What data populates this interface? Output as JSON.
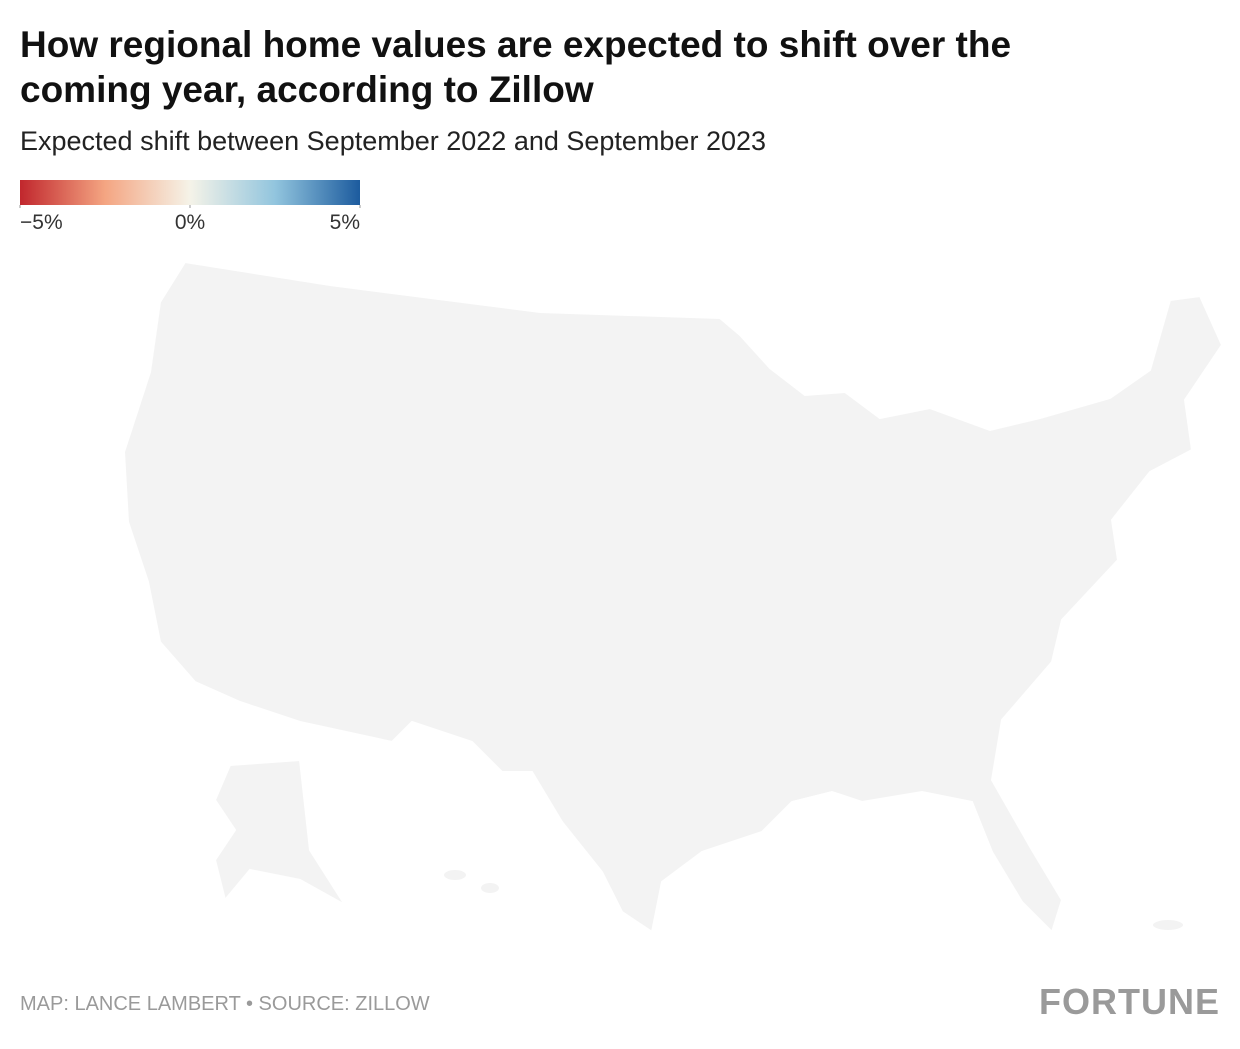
{
  "chart_data": {
    "type": "map",
    "title": [
      "How regional home values are expected to shift over the",
      "coming year, according to Zillow"
    ],
    "subtitle": "Expected shift between September 2022 and September 2023",
    "legend": {
      "lim": [
        -5,
        5
      ],
      "ticks": [
        {
          "value": -5,
          "label": "−5%"
        },
        {
          "value": 0,
          "label": "0%"
        },
        {
          "value": 5,
          "label": "5%"
        }
      ],
      "colors": [
        "#c1272d",
        "#f4a582",
        "#f5f3e8",
        "#92c5de",
        "#1c5b9e"
      ]
    },
    "credit": "MAP: LANCE LAMBERT • SOURCE: ZILLOW",
    "logo": "FORTUNE"
  }
}
